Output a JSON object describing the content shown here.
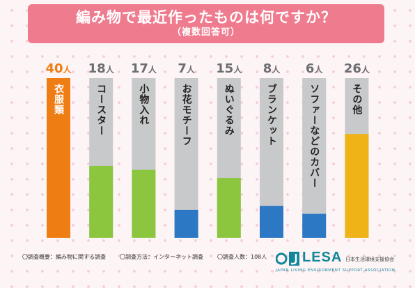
{
  "title": {
    "main": "編み物で最近作ったものは何ですか？",
    "sub": "（複数回答可）"
  },
  "chart_data": {
    "type": "bar",
    "categories": [
      "衣服類",
      "コースター",
      "小物入れ",
      "お花モチーフ",
      "ぬいぐるみ",
      "ブランケット",
      "ソファーなどのカバー",
      "その他"
    ],
    "values": [
      40,
      18,
      17,
      7,
      15,
      8,
      6,
      26
    ],
    "unit": "人",
    "ylim": [
      0,
      40
    ],
    "colors": [
      "#ee7d14",
      "#8cc63e",
      "#8cc63e",
      "#2d78c5",
      "#8cc63e",
      "#2d78c5",
      "#2d78c5",
      "#efb217"
    ],
    "highlight_color": "#ee7d14",
    "grid": false,
    "legend": "none"
  },
  "footer": {
    "notes": [
      "〇調査概要：編み物に関する調査",
      "〇調査方法：インターネット調査",
      "〇調査人数：108人"
    ]
  },
  "logo": {
    "name": "LESA",
    "name_jp": "日本生活環境支援協会",
    "name_en": "JAPAN LIVING ENVIRONMENT SUPPORT ASSOCIATION",
    "color": "#12869b"
  }
}
